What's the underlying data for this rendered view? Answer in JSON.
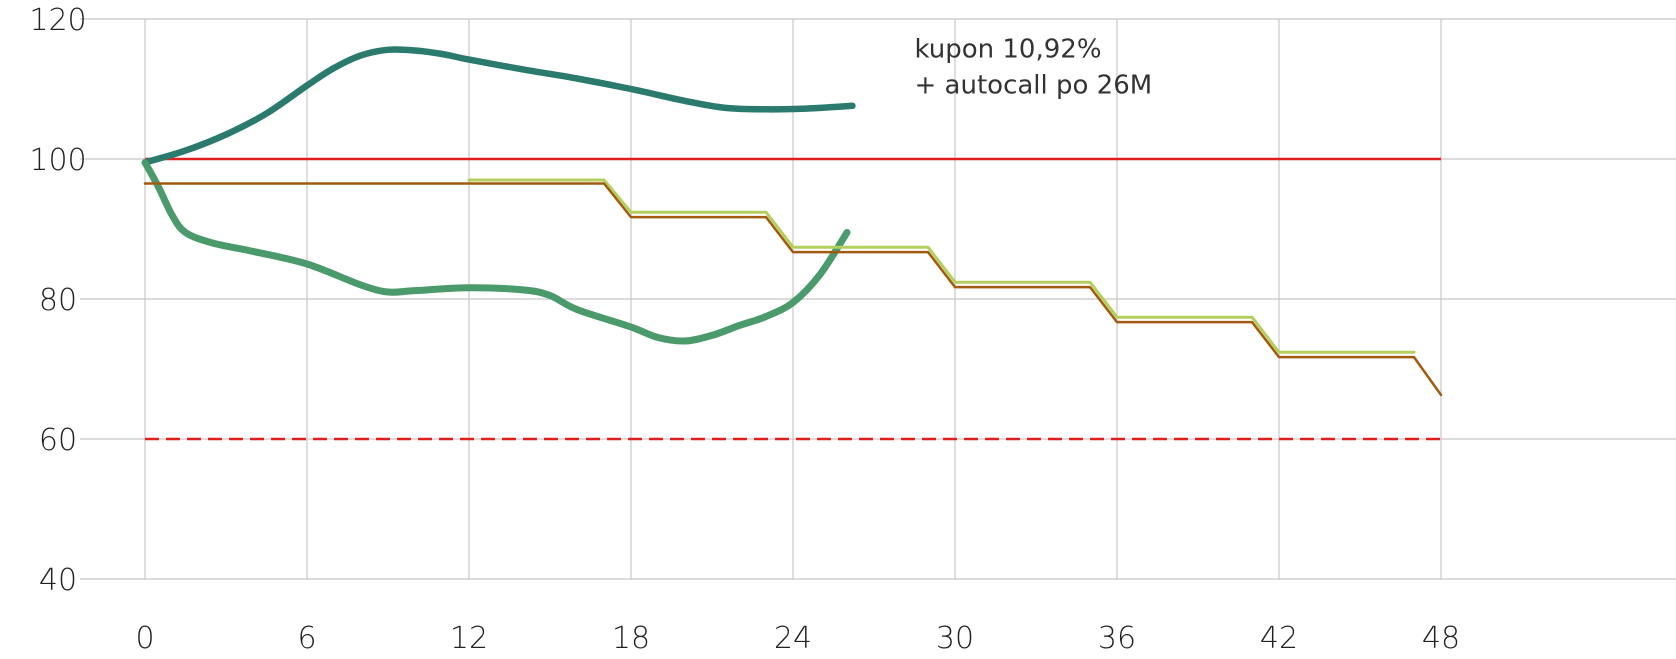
{
  "chart_data": {
    "type": "line",
    "title": "",
    "xlabel": "",
    "ylabel": "",
    "xlim": [
      0,
      57
    ],
    "ylim": [
      40,
      120
    ],
    "xticks": [
      0,
      6,
      12,
      18,
      24,
      30,
      36,
      42,
      48
    ],
    "yticks": [
      40,
      60,
      80,
      100,
      120
    ],
    "grid": true,
    "annotation": {
      "line1": "kupon 10,92%",
      "line2": "+ autocall po 26M",
      "x": 28.5,
      "y": 114.5
    },
    "series": [
      {
        "color": "#2a7a6e",
        "points": [
          [
            0,
            99.5
          ],
          [
            1.5,
            101.2
          ],
          [
            3,
            103.5
          ],
          [
            4.5,
            106.5
          ],
          [
            6,
            110.5
          ],
          [
            7,
            113
          ],
          [
            8,
            114.8
          ],
          [
            9,
            115.6
          ],
          [
            10,
            115.5
          ],
          [
            11,
            115
          ],
          [
            12,
            114.2
          ],
          [
            14,
            112.8
          ],
          [
            16,
            111.5
          ],
          [
            18,
            110
          ],
          [
            20,
            108.3
          ],
          [
            21.5,
            107.3
          ],
          [
            23,
            107.1
          ],
          [
            24.5,
            107.2
          ],
          [
            26.2,
            107.6
          ]
        ]
      },
      {
        "color": "#4a9a6c",
        "points": [
          [
            0,
            99.5
          ],
          [
            0.5,
            96
          ],
          [
            1,
            92
          ],
          [
            1.5,
            89.5
          ],
          [
            2.5,
            88
          ],
          [
            4,
            86.8
          ],
          [
            6,
            85
          ],
          [
            8,
            82
          ],
          [
            9,
            81
          ],
          [
            10,
            81.2
          ],
          [
            12,
            81.6
          ],
          [
            14,
            81.3
          ],
          [
            15,
            80.5
          ],
          [
            16,
            78.5
          ],
          [
            18,
            76
          ],
          [
            19,
            74.5
          ],
          [
            20,
            74
          ],
          [
            21,
            74.8
          ],
          [
            22,
            76.2
          ],
          [
            23,
            77.5
          ],
          [
            24,
            79.5
          ],
          [
            25,
            83.5
          ],
          [
            26,
            89.5
          ]
        ]
      },
      {
        "color": "#b5cf5c",
        "points": [
          [
            12,
            97
          ],
          [
            17,
            97
          ],
          [
            18,
            92.4
          ],
          [
            23,
            92.4
          ],
          [
            24,
            87.4
          ],
          [
            29,
            87.4
          ],
          [
            30,
            82.4
          ],
          [
            35,
            82.4
          ],
          [
            36,
            77.4
          ],
          [
            41,
            77.4
          ],
          [
            42,
            72.4
          ],
          [
            47,
            72.4
          ]
        ]
      },
      {
        "color": "#a25a10",
        "points": [
          [
            0,
            96.5
          ],
          [
            17,
            96.5
          ],
          [
            18,
            91.7
          ],
          [
            23,
            91.7
          ],
          [
            24,
            86.7
          ],
          [
            29,
            86.7
          ],
          [
            30,
            81.7
          ],
          [
            35,
            81.7
          ],
          [
            36,
            76.7
          ],
          [
            41,
            76.7
          ],
          [
            42,
            71.7
          ],
          [
            47,
            71.7
          ],
          [
            48,
            66.3
          ]
        ]
      }
    ],
    "reference_lines": [
      {
        "y": 100,
        "x_from": 0,
        "x_to": 48,
        "color": "#e02020",
        "style": "solid"
      },
      {
        "y": 60,
        "x_from": 0,
        "x_to": 48,
        "color": "#e02020",
        "style": "dashed"
      }
    ]
  }
}
